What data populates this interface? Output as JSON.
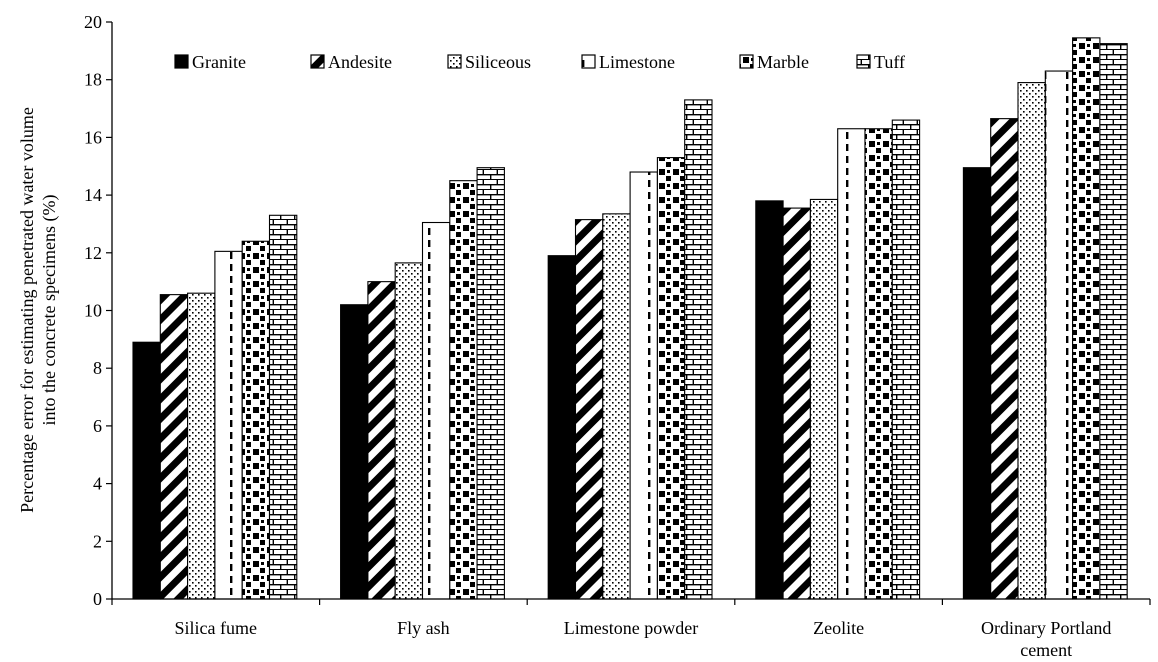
{
  "chart_data": {
    "type": "bar",
    "title": "",
    "xlabel": "",
    "ylabel": [
      "Percentage error for estimating penetrated water volume",
      "into the concrete specimens (%)"
    ],
    "ylim": [
      0,
      20
    ],
    "yticks": [
      "0",
      "2",
      "4",
      "6",
      "8",
      "10",
      "12",
      "14",
      "16",
      "18",
      "20"
    ],
    "grid": false,
    "legend_position": "top",
    "categories": [
      [
        "Silica fume"
      ],
      [
        "Fly ash"
      ],
      [
        "Limestone powder"
      ],
      [
        "Zeolite"
      ],
      [
        "Ordinary Portland",
        "cement"
      ]
    ],
    "series": [
      {
        "name": "Granite",
        "pattern": "solid",
        "values": [
          8.9,
          10.2,
          11.9,
          13.8,
          14.95
        ]
      },
      {
        "name": "Andesite",
        "pattern": "wide-diagonal",
        "values": [
          10.55,
          11.0,
          13.15,
          13.55,
          16.65
        ]
      },
      {
        "name": "Siliceous",
        "pattern": "dotted",
        "values": [
          10.6,
          11.65,
          13.35,
          13.85,
          17.9
        ]
      },
      {
        "name": "Limestone",
        "pattern": "dashed-vertical",
        "values": [
          12.05,
          13.05,
          14.8,
          16.3,
          18.3
        ]
      },
      {
        "name": "Marble",
        "pattern": "checker",
        "values": [
          12.4,
          14.5,
          15.3,
          16.3,
          19.45
        ]
      },
      {
        "name": "Tuff",
        "pattern": "brick",
        "values": [
          13.3,
          14.95,
          17.3,
          16.6,
          19.25
        ]
      }
    ]
  }
}
